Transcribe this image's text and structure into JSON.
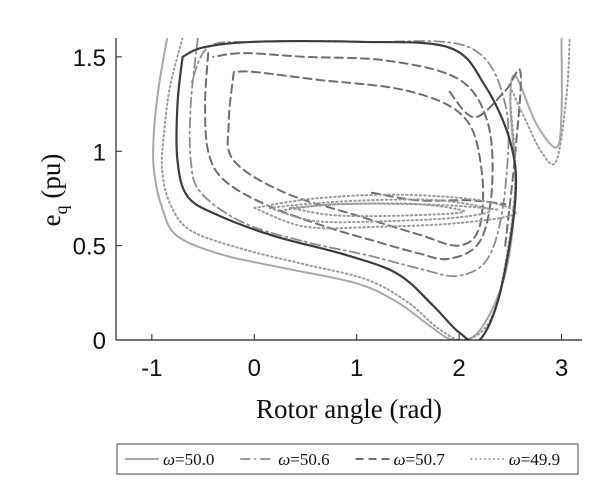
{
  "chart_data": {
    "type": "line",
    "title": "",
    "xlabel": "Rotor angle (rad)",
    "ylabel_main": "e",
    "ylabel_sub": "q",
    "ylabel_tail": " (pu)",
    "xlim": [
      -1.35,
      3.2
    ],
    "ylim": [
      0,
      1.6
    ],
    "xticks": [
      -1,
      0,
      1,
      2,
      3
    ],
    "xtick_labels": [
      "-1",
      "0",
      "1",
      "2",
      "3"
    ],
    "yticks": [
      0,
      0.5,
      1,
      1.5
    ],
    "ytick_labels": [
      "0",
      "0.5",
      "1",
      "1.5"
    ],
    "grid": false,
    "legend_position": "bottom-outside",
    "legend_symbol": "ω",
    "series": [
      {
        "name": "=50.0",
        "color": "#a8a8a8",
        "style": "solid",
        "curves": [
          [
            [
              -0.85,
              1.6
            ],
            [
              -0.93,
              1.35
            ],
            [
              -0.98,
              1.1
            ],
            [
              -0.98,
              0.9
            ],
            [
              -0.9,
              0.7
            ],
            [
              -0.75,
              0.55
            ],
            [
              -0.3,
              0.45
            ],
            [
              0.3,
              0.38
            ],
            [
              1.0,
              0.3
            ],
            [
              1.4,
              0.2
            ],
            [
              1.7,
              0.08
            ],
            [
              1.95,
              0.0
            ],
            [
              2.2,
              0.05
            ],
            [
              2.45,
              0.35
            ],
            [
              2.55,
              0.8
            ],
            [
              2.5,
              1.25
            ],
            [
              2.55,
              1.4
            ],
            [
              2.75,
              1.15
            ],
            [
              2.95,
              1.02
            ],
            [
              3.0,
              1.2
            ],
            [
              3.0,
              1.6
            ]
          ]
        ]
      },
      {
        "name": "=50.6",
        "color": "#8c8c8c",
        "style": "dashdot",
        "curves": [
          [
            [
              -0.55,
              1.6
            ],
            [
              -0.62,
              1.25
            ],
            [
              -0.62,
              0.95
            ],
            [
              -0.52,
              0.78
            ],
            [
              -0.1,
              0.62
            ],
            [
              0.5,
              0.52
            ],
            [
              1.1,
              0.45
            ],
            [
              1.6,
              0.38
            ],
            [
              2.0,
              0.34
            ],
            [
              2.3,
              0.45
            ],
            [
              2.45,
              0.8
            ],
            [
              2.45,
              1.25
            ],
            [
              2.1,
              1.55
            ],
            [
              1.1,
              1.58
            ],
            [
              0.0,
              1.58
            ],
            [
              -0.45,
              1.55
            ],
            [
              -0.62,
              1.35
            ]
          ]
        ]
      },
      {
        "name": "=50.7",
        "color": "#6e6e6e",
        "style": "dashed",
        "curves": [
          [
            [
              -0.45,
              1.52
            ],
            [
              -0.48,
              1.25
            ],
            [
              -0.45,
              1.0
            ],
            [
              -0.3,
              0.85
            ],
            [
              0.1,
              0.72
            ],
            [
              0.7,
              0.6
            ],
            [
              1.2,
              0.52
            ],
            [
              1.6,
              0.46
            ],
            [
              1.9,
              0.43
            ],
            [
              2.2,
              0.52
            ],
            [
              2.32,
              0.8
            ],
            [
              2.28,
              1.15
            ],
            [
              2.0,
              1.38
            ],
            [
              1.3,
              1.48
            ],
            [
              0.5,
              1.5
            ],
            [
              -0.1,
              1.52
            ],
            [
              -0.4,
              1.5
            ]
          ],
          [
            [
              -0.2,
              1.42
            ],
            [
              -0.25,
              1.15
            ],
            [
              -0.2,
              0.95
            ],
            [
              0.3,
              0.78
            ],
            [
              1.0,
              0.66
            ],
            [
              1.6,
              0.56
            ],
            [
              2.0,
              0.5
            ],
            [
              2.2,
              0.6
            ],
            [
              2.22,
              0.9
            ],
            [
              2.05,
              1.18
            ],
            [
              1.5,
              1.32
            ],
            [
              0.6,
              1.38
            ],
            [
              0.0,
              1.42
            ],
            [
              -0.2,
              1.42
            ]
          ],
          [
            [
              2.45,
              0.5
            ],
            [
              2.55,
              1.0
            ],
            [
              2.6,
              1.42
            ],
            [
              2.45,
              1.32
            ],
            [
              2.15,
              1.18
            ],
            [
              1.9,
              1.32
            ]
          ],
          [
            [
              1.15,
              0.78
            ],
            [
              1.6,
              0.74
            ],
            [
              2.1,
              0.74
            ],
            [
              2.45,
              0.72
            ]
          ]
        ]
      },
      {
        "name": "=49.9",
        "color": "#9a9a9a",
        "style": "dotted",
        "curves": [
          [
            [
              -0.7,
              1.6
            ],
            [
              -0.82,
              1.35
            ],
            [
              -0.88,
              1.1
            ],
            [
              -0.9,
              0.9
            ],
            [
              -0.82,
              0.72
            ],
            [
              -0.62,
              0.58
            ],
            [
              -0.1,
              0.48
            ],
            [
              0.5,
              0.4
            ],
            [
              1.1,
              0.32
            ],
            [
              1.5,
              0.2
            ],
            [
              1.8,
              0.06
            ],
            [
              2.05,
              0.0
            ],
            [
              2.3,
              0.1
            ],
            [
              2.45,
              0.4
            ],
            [
              2.55,
              0.85
            ],
            [
              2.5,
              1.3
            ],
            [
              2.6,
              1.22
            ],
            [
              2.8,
              1.0
            ],
            [
              2.95,
              0.95
            ],
            [
              3.05,
              1.3
            ],
            [
              3.08,
              1.6
            ]
          ],
          [
            [
              0.3,
              0.69
            ],
            [
              0.8,
              0.72
            ],
            [
              1.5,
              0.72
            ],
            [
              2.0,
              0.71
            ],
            [
              2.4,
              0.69
            ]
          ],
          [
            [
              0.0,
              0.7
            ],
            [
              0.5,
              0.6
            ],
            [
              1.2,
              0.6
            ],
            [
              2.0,
              0.62
            ],
            [
              2.55,
              0.67
            ],
            [
              2.2,
              0.74
            ],
            [
              1.4,
              0.77
            ],
            [
              0.6,
              0.75
            ],
            [
              0.0,
              0.7
            ]
          ],
          [
            [
              0.15,
              0.7
            ],
            [
              0.6,
              0.63
            ],
            [
              1.3,
              0.63
            ],
            [
              2.0,
              0.65
            ],
            [
              2.3,
              0.69
            ],
            [
              1.8,
              0.74
            ],
            [
              1.1,
              0.74
            ],
            [
              0.5,
              0.72
            ],
            [
              0.15,
              0.7
            ]
          ],
          [
            [
              0.35,
              0.7
            ],
            [
              0.8,
              0.66
            ],
            [
              1.5,
              0.66
            ],
            [
              2.05,
              0.68
            ],
            [
              1.6,
              0.72
            ],
            [
              0.9,
              0.72
            ],
            [
              0.35,
              0.7
            ]
          ]
        ]
      },
      {
        "name": "",
        "color": "#3c3c3c",
        "style": "solid-dark",
        "curves": [
          [
            [
              -0.7,
              1.5
            ],
            [
              -0.75,
              1.25
            ],
            [
              -0.75,
              0.95
            ],
            [
              -0.65,
              0.76
            ],
            [
              -0.35,
              0.66
            ],
            [
              0.2,
              0.55
            ],
            [
              0.9,
              0.45
            ],
            [
              1.4,
              0.35
            ],
            [
              1.75,
              0.18
            ],
            [
              2.0,
              0.04
            ],
            [
              2.2,
              0.0
            ],
            [
              2.4,
              0.25
            ],
            [
              2.55,
              0.75
            ],
            [
              2.5,
              1.05
            ],
            [
              2.25,
              1.35
            ],
            [
              1.9,
              1.55
            ],
            [
              1.0,
              1.58
            ],
            [
              0.0,
              1.58
            ],
            [
              -0.5,
              1.55
            ],
            [
              -0.7,
              1.5
            ]
          ]
        ]
      }
    ]
  }
}
